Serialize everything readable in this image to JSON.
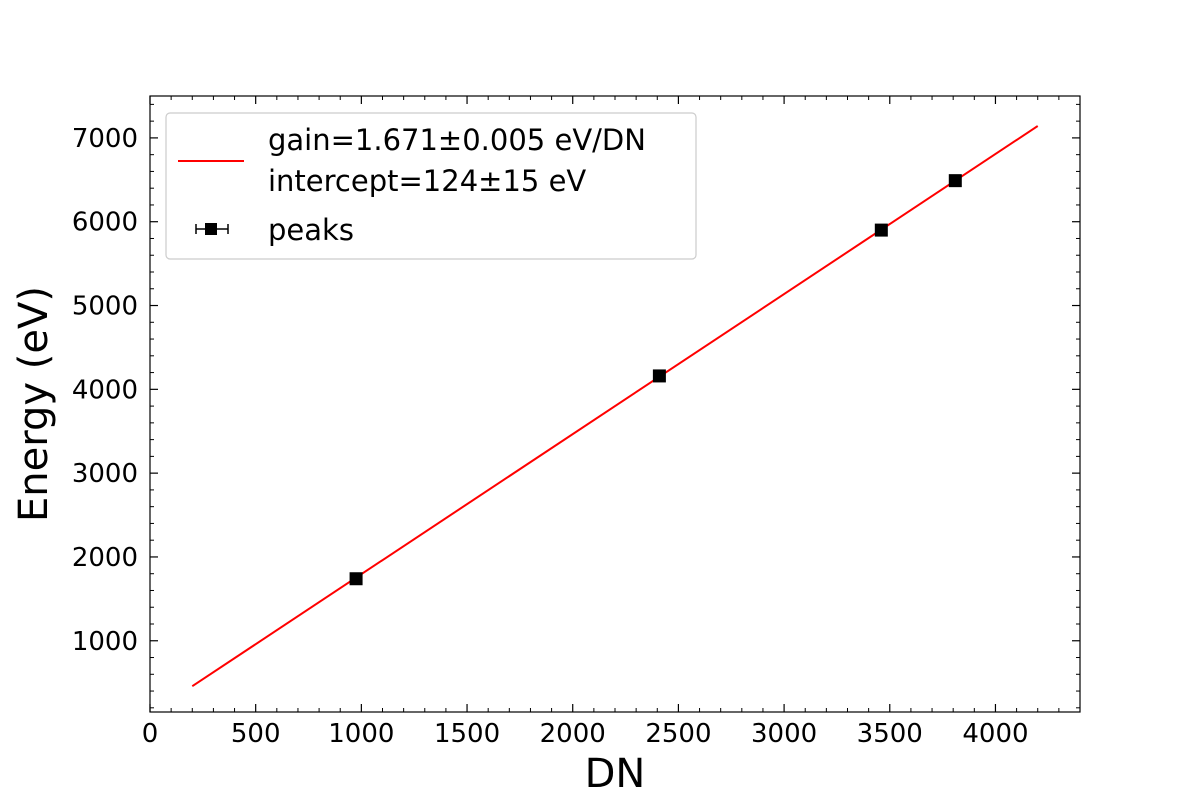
{
  "chart_data": {
    "type": "scatter",
    "xlabel": "DN",
    "ylabel": "Energy (eV)",
    "xlim": [
      0,
      4400
    ],
    "ylim": [
      150,
      7500
    ],
    "x_ticks": [
      "0",
      "500",
      "1000",
      "1500",
      "2000",
      "2500",
      "3000",
      "3500",
      "4000"
    ],
    "y_ticks": [
      "1000",
      "2000",
      "3000",
      "4000",
      "5000",
      "6000",
      "7000"
    ],
    "grid": false,
    "legend_position": "top-left",
    "series": [
      {
        "name": "gain=1.671±0.005 eV/DN",
        "name_line2": "intercept=124±15 eV",
        "type": "line",
        "color": "#ff0000",
        "x": [
          200,
          4200
        ],
        "y": [
          458,
          7142
        ]
      },
      {
        "name": "peaks",
        "type": "scatter",
        "marker": "square",
        "color": "#000000",
        "x": [
          975,
          2410,
          3460,
          3810
        ],
        "y": [
          1740,
          4160,
          5900,
          6490
        ]
      }
    ]
  }
}
